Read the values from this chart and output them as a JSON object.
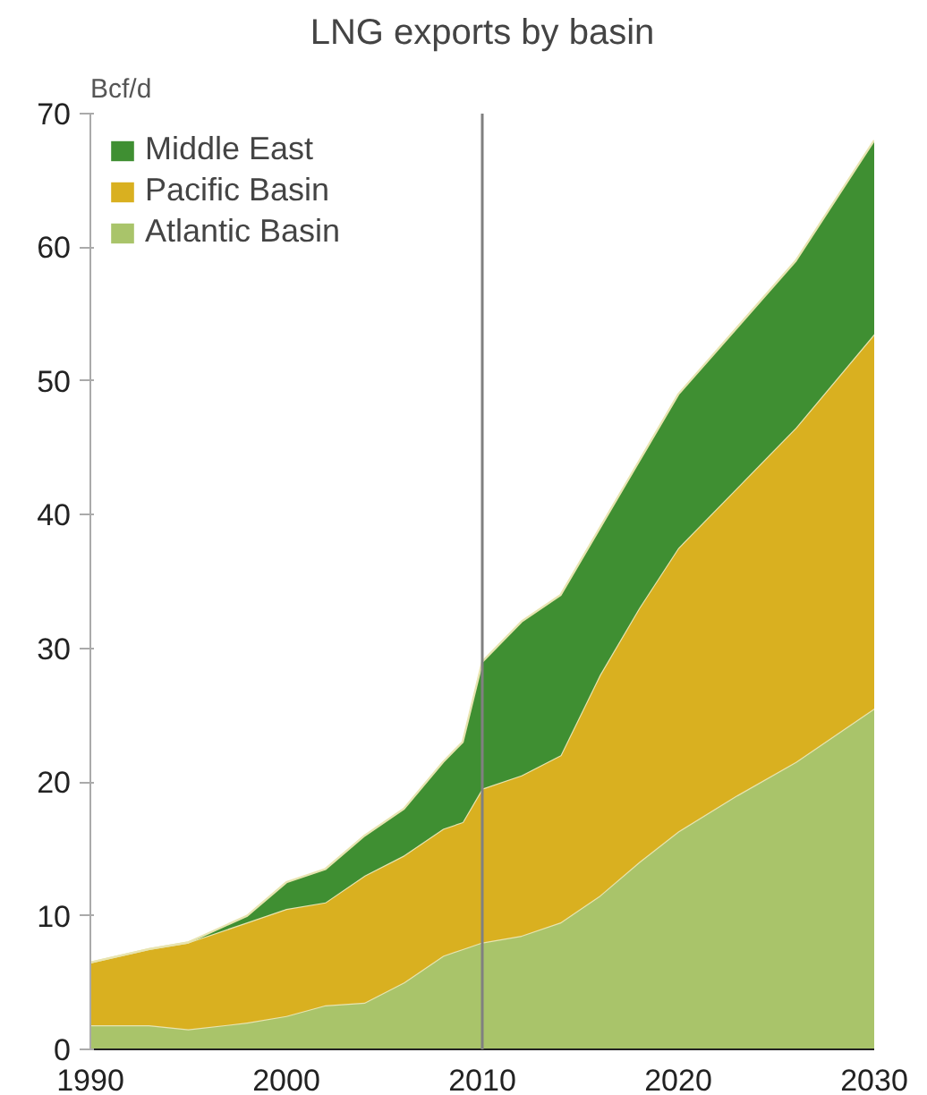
{
  "chart_data": {
    "type": "area",
    "stacked": true,
    "title": "LNG exports by basin",
    "ylabel": "Bcf/d",
    "x": [
      1990,
      1993,
      1995,
      1998,
      2000,
      2002,
      2004,
      2006,
      2008,
      2009,
      2010,
      2012,
      2014,
      2016,
      2018,
      2020,
      2023,
      2026,
      2030
    ],
    "series": [
      {
        "name": "Atlantic Basin",
        "color": "#a9c46a",
        "values": [
          1.8,
          1.8,
          1.5,
          2.0,
          2.5,
          3.3,
          3.5,
          5.0,
          7.0,
          7.5,
          8.0,
          8.5,
          9.5,
          11.5,
          14,
          16.3,
          19,
          21.5,
          25.5
        ]
      },
      {
        "name": "Pacific Basin",
        "color": "#d9b020",
        "values": [
          4.7,
          5.7,
          6.5,
          7.5,
          8.0,
          7.7,
          9.5,
          9.5,
          9.5,
          9.5,
          11.5,
          12,
          12.5,
          16.5,
          19,
          21.2,
          23,
          25,
          28
        ]
      },
      {
        "name": "Middle East",
        "color": "#3f8f32",
        "values": [
          0,
          0,
          0,
          0.5,
          2,
          2.5,
          3,
          3.5,
          5,
          6,
          9.5,
          11.5,
          12,
          11,
          11,
          11.5,
          12,
          12.5,
          14.5
        ]
      }
    ],
    "xlim": [
      1990,
      2030
    ],
    "xticks": [
      1990,
      2000,
      2010,
      2020,
      2030
    ],
    "ylim": [
      0,
      70
    ],
    "yticks": [
      0,
      10,
      20,
      30,
      40,
      50,
      60,
      70
    ],
    "ref_lines": [
      {
        "axis": "x",
        "value": 2010,
        "label": null,
        "color": "#808080"
      }
    ],
    "grid": false,
    "legend": "top left"
  }
}
